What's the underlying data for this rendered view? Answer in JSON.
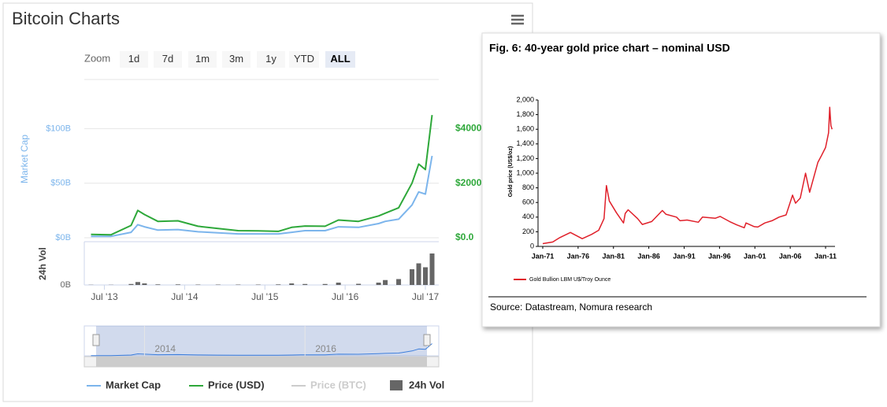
{
  "chart_data": [
    {
      "type": "line",
      "title": "Bitcoin Charts",
      "zoom": {
        "label": "Zoom",
        "buttons": [
          "1d",
          "7d",
          "1m",
          "3m",
          "1y",
          "YTD",
          "ALL"
        ],
        "selected": 6
      },
      "ylabel": "Market Cap",
      "y3label": "24h Vol",
      "x": [
        "2013-05",
        "2013-08",
        "2013-11",
        "2013-12",
        "2014-01",
        "2014-03",
        "2014-06",
        "2014-09",
        "2014-12",
        "2015-03",
        "2015-06",
        "2015-09",
        "2015-11",
        "2016-01",
        "2016-04",
        "2016-06",
        "2016-09",
        "2016-12",
        "2017-01",
        "2017-03",
        "2017-05",
        "2017-06",
        "2017-07",
        "2017-08"
      ],
      "series": [
        {
          "name": "Market Cap",
          "color": "#7cb5ec",
          "axis": "y",
          "values": [
            1.3,
            1.3,
            5,
            12,
            10,
            7,
            7.5,
            5.5,
            4.5,
            3.5,
            3.5,
            3.5,
            5,
            6.5,
            6.5,
            10,
            9.5,
            13,
            15,
            17,
            30,
            42,
            40,
            75
          ]
        },
        {
          "name": "Price (USD)",
          "color": "#2ea83a",
          "axis": "y2",
          "values": [
            120,
            110,
            450,
            1000,
            850,
            600,
            620,
            420,
            340,
            260,
            250,
            235,
            380,
            430,
            420,
            650,
            600,
            800,
            900,
            1100,
            2000,
            2700,
            2500,
            4500
          ]
        },
        {
          "name": "Price (BTC)",
          "color": "#cccccc",
          "axis": "y2",
          "visible": false,
          "values": [
            null,
            null,
            null,
            null,
            null,
            null,
            null,
            null,
            null,
            null,
            null,
            null,
            null,
            null,
            null,
            null,
            null,
            null,
            null,
            null,
            null,
            null,
            null,
            null
          ]
        },
        {
          "name": "24h Vol",
          "color": "#666666",
          "type": "bar",
          "axis": "y3",
          "values": [
            0.01,
            0.01,
            0.05,
            0.15,
            0.08,
            0.03,
            0.03,
            0.02,
            0.02,
            0.02,
            0.02,
            0.03,
            0.08,
            0.05,
            0.05,
            0.12,
            0.06,
            0.12,
            0.25,
            0.3,
            0.8,
            1.1,
            0.9,
            1.6
          ]
        }
      ],
      "xlim": [
        "2013-04",
        "2017-09"
      ],
      "xticks": [
        {
          "value": "2013-07",
          "label": "Jul '13"
        },
        {
          "value": "2014-07",
          "label": "Jul '14"
        },
        {
          "value": "2015-07",
          "label": "Jul '15"
        },
        {
          "value": "2016-07",
          "label": "Jul '16"
        },
        {
          "value": "2017-07",
          "label": "Jul '17"
        }
      ],
      "ylim": [
        0,
        145
      ],
      "yticks": [
        {
          "value": 0,
          "label": "$0B"
        },
        {
          "value": 50,
          "label": "$50B"
        },
        {
          "value": 100,
          "label": "$100B"
        }
      ],
      "y2lim": [
        0,
        5800
      ],
      "y2ticks": [
        {
          "value": 0,
          "label": "$0.0"
        },
        {
          "value": 2000,
          "label": "$2000"
        },
        {
          "value": 4000,
          "label": "$4000"
        }
      ],
      "y3lim": [
        0,
        2
      ],
      "y3ticks": [
        {
          "value": 0,
          "label": "0B"
        }
      ],
      "navigator_ticks": [
        {
          "value": "2014-01",
          "label": "2014"
        },
        {
          "value": "2016-01",
          "label": "2016"
        }
      ],
      "grid": true
    },
    {
      "type": "line",
      "title": "Fig. 6:  40-year gold price chart – nominal USD",
      "ylabel": "Gold price (US$/oz)",
      "x": [
        "1971-01",
        "1972-06",
        "1973-06",
        "1974-12",
        "1976-08",
        "1977-12",
        "1978-12",
        "1979-09",
        "1980-01",
        "1980-06",
        "1981-06",
        "1982-06",
        "1982-09",
        "1983-02",
        "1984-06",
        "1985-02",
        "1986-06",
        "1987-12",
        "1988-06",
        "1989-12",
        "1990-06",
        "1991-06",
        "1993-01",
        "1993-08",
        "1995-06",
        "1996-02",
        "1997-06",
        "1998-06",
        "1999-07",
        "1999-10",
        "2000-12",
        "2001-06",
        "2002-06",
        "2003-06",
        "2004-06",
        "2005-06",
        "2006-05",
        "2006-10",
        "2007-06",
        "2008-03",
        "2008-10",
        "2009-12",
        "2010-06",
        "2011-01",
        "2011-06",
        "2011-08",
        "2011-10",
        "2011-12"
      ],
      "series": [
        {
          "name": "Gold Bullion LBM U$/Troy Ounce",
          "color": "#e0202a",
          "values": [
            38,
            60,
            120,
            190,
            105,
            165,
            220,
            380,
            830,
            620,
            460,
            320,
            450,
            500,
            380,
            300,
            340,
            490,
            440,
            400,
            350,
            360,
            330,
            400,
            385,
            410,
            340,
            295,
            255,
            320,
            270,
            265,
            320,
            350,
            400,
            430,
            700,
            590,
            660,
            1000,
            740,
            1150,
            1240,
            1350,
            1550,
            1900,
            1650,
            1600
          ]
        }
      ],
      "xlim": [
        "1970-05",
        "2012-05"
      ],
      "xticks": [
        {
          "value": "1971-01",
          "label": "Jan-71"
        },
        {
          "value": "1976-01",
          "label": "Jan-76"
        },
        {
          "value": "1981-01",
          "label": "Jan-81"
        },
        {
          "value": "1986-01",
          "label": "Jan-86"
        },
        {
          "value": "1991-01",
          "label": "Jan-91"
        },
        {
          "value": "1996-01",
          "label": "Jan-96"
        },
        {
          "value": "2001-01",
          "label": "Jan-01"
        },
        {
          "value": "2006-01",
          "label": "Jan-06"
        },
        {
          "value": "2011-01",
          "label": "Jan-11"
        }
      ],
      "ylim": [
        0,
        2000
      ],
      "yticks": [
        0,
        200,
        400,
        600,
        800,
        {
          "value": 1000,
          "label": "1,000"
        },
        {
          "value": 1200,
          "label": "1,200"
        },
        {
          "value": 1400,
          "label": "1,400"
        },
        {
          "value": 1600,
          "label": "1,600"
        },
        {
          "value": 1800,
          "label": "1,800"
        },
        {
          "value": 2000,
          "label": "2,000"
        }
      ],
      "source": "Source: Datastream, Nomura research"
    }
  ]
}
